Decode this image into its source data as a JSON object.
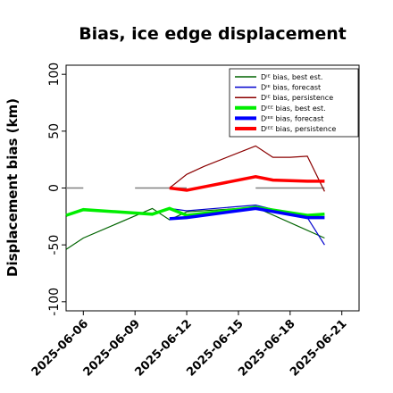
{
  "chart_data": {
    "type": "line",
    "title": "Bias, ice edge displacement",
    "ylabel": "Displacement bias (km)",
    "xlabel": "",
    "ylim": [
      -108,
      108
    ],
    "xlim": [
      "2025-06-05",
      "2025-06-22"
    ],
    "yticks": [
      100,
      50,
      0,
      -50,
      -100
    ],
    "xticks": [
      {
        "date": "2025-06-06",
        "label": "2025-06-06",
        "color": "#000000"
      },
      {
        "date": "2025-06-09",
        "label": "2025-06-09",
        "color": "#000000"
      },
      {
        "date": "2025-06-12",
        "label": "2025-06-12",
        "color": "#228B22"
      },
      {
        "date": "2025-06-15",
        "label": "2025-06-15",
        "color": "#000000"
      },
      {
        "date": "2025-06-18",
        "label": "2025-06-18",
        "color": "#000000"
      },
      {
        "date": "2025-06-21",
        "label": "2025-06-21",
        "color": "#000000"
      }
    ],
    "legend_position": "top-right",
    "zero_segments": [
      {
        "x": [
          "2025-06-05",
          "2025-06-06"
        ],
        "y": 0
      },
      {
        "x": [
          "2025-06-09",
          "2025-06-12"
        ],
        "y": 0
      },
      {
        "x": [
          "2025-06-16",
          "2025-06-20"
        ],
        "y": 0
      }
    ],
    "series": [
      {
        "name": "Dᴵᴱ bias, best est.",
        "color": "#006400",
        "width": 1.2,
        "legend_width": 1.5,
        "x": [
          "2025-06-05",
          "2025-06-06",
          "2025-06-10",
          "2025-06-11",
          "2025-06-12",
          "2025-06-16",
          "2025-06-20"
        ],
        "y": [
          -54,
          -44,
          -18,
          -28,
          -21,
          -17,
          -44
        ]
      },
      {
        "name": "Dᴵᴱ bias, forecast",
        "color": "#0000CD",
        "width": 1.2,
        "legend_width": 1.5,
        "x": [
          "2025-06-11",
          "2025-06-12",
          "2025-06-16",
          "2025-06-19",
          "2025-06-20"
        ],
        "y": [
          -18,
          -20,
          -15,
          -26,
          -50
        ]
      },
      {
        "name": "Dᴵᴱ bias, persistence",
        "color": "#8B0000",
        "width": 1.2,
        "legend_width": 1.5,
        "x": [
          "2025-06-11",
          "2025-06-12",
          "2025-06-13",
          "2025-06-16",
          "2025-06-17",
          "2025-06-18",
          "2025-06-19",
          "2025-06-20"
        ],
        "y": [
          0,
          12,
          19,
          37,
          27,
          27,
          28,
          -3
        ]
      },
      {
        "name": "Dᴵᴱᴱ bias, best est.",
        "color": "#00EE00",
        "width": 3.5,
        "legend_width": 4,
        "x": [
          "2025-06-05",
          "2025-06-06",
          "2025-06-10",
          "2025-06-11",
          "2025-06-12",
          "2025-06-16",
          "2025-06-19",
          "2025-06-20"
        ],
        "y": [
          -24,
          -19,
          -23,
          -18,
          -24,
          -17,
          -24,
          -23
        ]
      },
      {
        "name": "Dᴵᴱᴱ bias, forecast",
        "color": "#0000FF",
        "width": 3.5,
        "legend_width": 4,
        "x": [
          "2025-06-11",
          "2025-06-12",
          "2025-06-16",
          "2025-06-19",
          "2025-06-20"
        ],
        "y": [
          -27,
          -26,
          -18,
          -26,
          -26
        ]
      },
      {
        "name": "Dᴵᴱᴱ bias, persistence",
        "color": "#FF0000",
        "width": 3.5,
        "legend_width": 4,
        "x": [
          "2025-06-11",
          "2025-06-12",
          "2025-06-13",
          "2025-06-16",
          "2025-06-17",
          "2025-06-19",
          "2025-06-20"
        ],
        "y": [
          0,
          -2,
          1,
          10,
          7,
          6,
          6
        ]
      }
    ]
  }
}
